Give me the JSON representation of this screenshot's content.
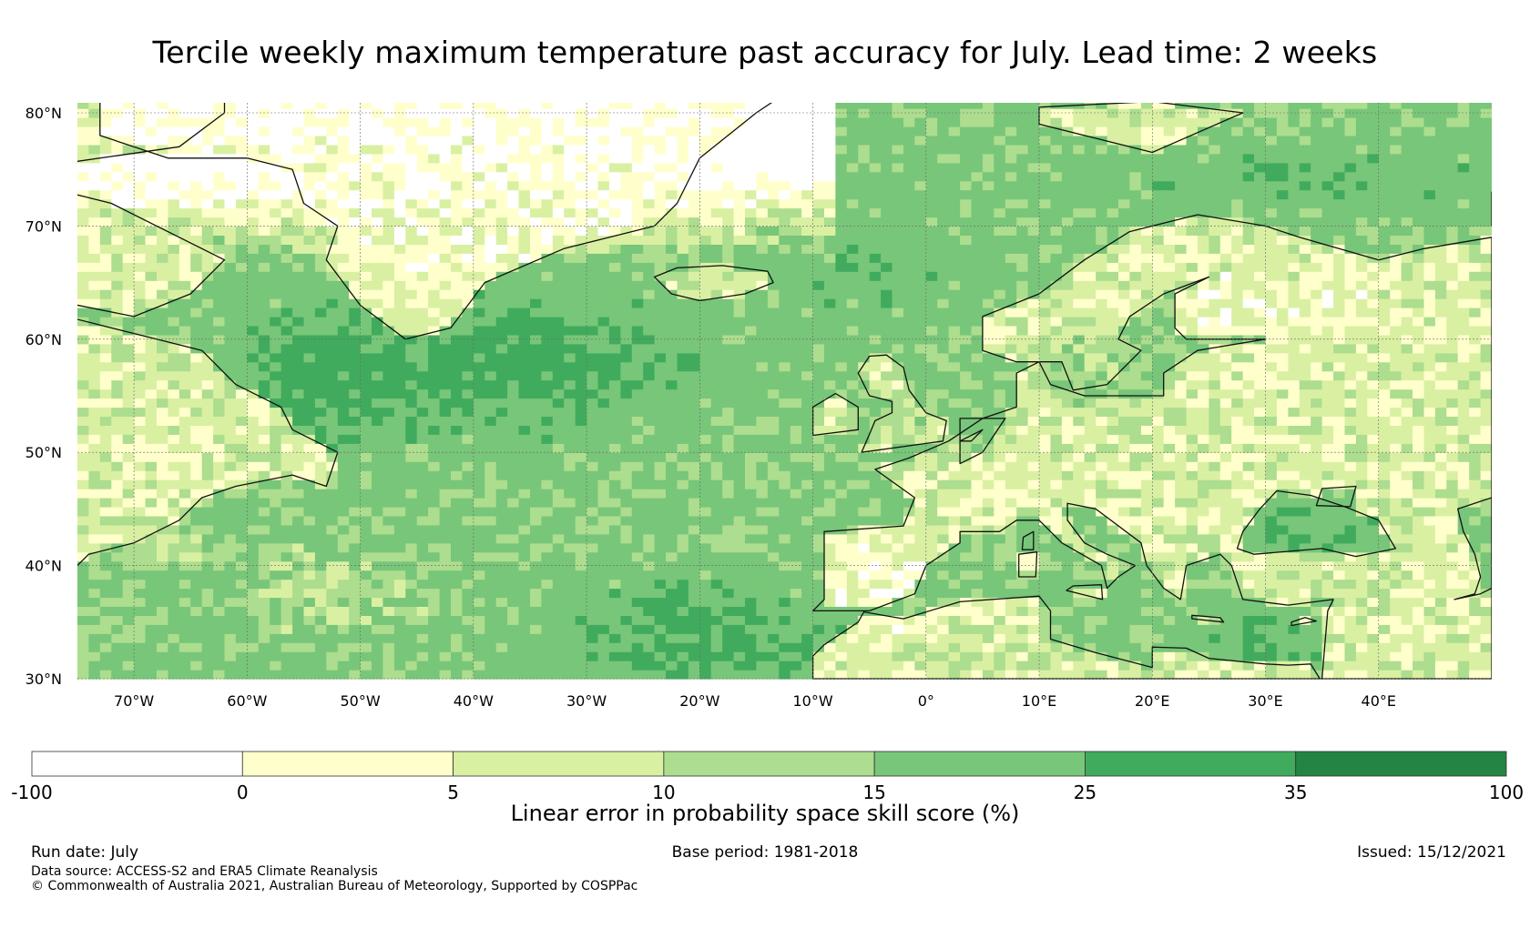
{
  "title": "Tercile weekly maximum temperature past accuracy for July. Lead time: 2 weeks",
  "map": {
    "lon_range": [
      -75,
      50
    ],
    "lat_range": [
      30,
      81
    ],
    "lat_ticks": [
      {
        "value": 80,
        "label": "80°N"
      },
      {
        "value": 70,
        "label": "70°N"
      },
      {
        "value": 60,
        "label": "60°N"
      },
      {
        "value": 50,
        "label": "50°N"
      },
      {
        "value": 40,
        "label": "40°N"
      },
      {
        "value": 30,
        "label": "30°N"
      }
    ],
    "lon_ticks": [
      {
        "value": -70,
        "label": "70°W"
      },
      {
        "value": -60,
        "label": "60°W"
      },
      {
        "value": -50,
        "label": "50°W"
      },
      {
        "value": -40,
        "label": "40°W"
      },
      {
        "value": -30,
        "label": "30°W"
      },
      {
        "value": -20,
        "label": "20°W"
      },
      {
        "value": -10,
        "label": "10°W"
      },
      {
        "value": 0,
        "label": "0°"
      },
      {
        "value": 10,
        "label": "10°E"
      },
      {
        "value": 20,
        "label": "20°E"
      },
      {
        "value": 30,
        "label": "30°E"
      },
      {
        "value": 40,
        "label": "40°E"
      }
    ]
  },
  "colorbar": {
    "label": "Linear error in probability space skill score (%)",
    "bins": [
      {
        "from": "-100",
        "to": "0",
        "color": "#ffffff"
      },
      {
        "from": "0",
        "to": "5",
        "color": "#ffffcc"
      },
      {
        "from": "5",
        "to": "10",
        "color": "#d9f0a3"
      },
      {
        "from": "10",
        "to": "15",
        "color": "#addd8e"
      },
      {
        "from": "15",
        "to": "25",
        "color": "#78c679"
      },
      {
        "from": "25",
        "to": "35",
        "color": "#41ab5d"
      },
      {
        "from": "35",
        "to": "100",
        "color": "#238443"
      }
    ],
    "ticks": [
      "-100",
      "0",
      "5",
      "10",
      "15",
      "25",
      "35",
      "100"
    ]
  },
  "footer": {
    "run_date": "Run date: July",
    "base_period": "Base period: 1981-2018",
    "issued": "Issued: 15/12/2021",
    "data_source": "Data source: ACCESS-S2 and ERA5 Climate Reanalysis",
    "copyright": "© Commonwealth of Australia 2021, Australian Bureau of Meteorology, Supported by COSPPac"
  }
}
